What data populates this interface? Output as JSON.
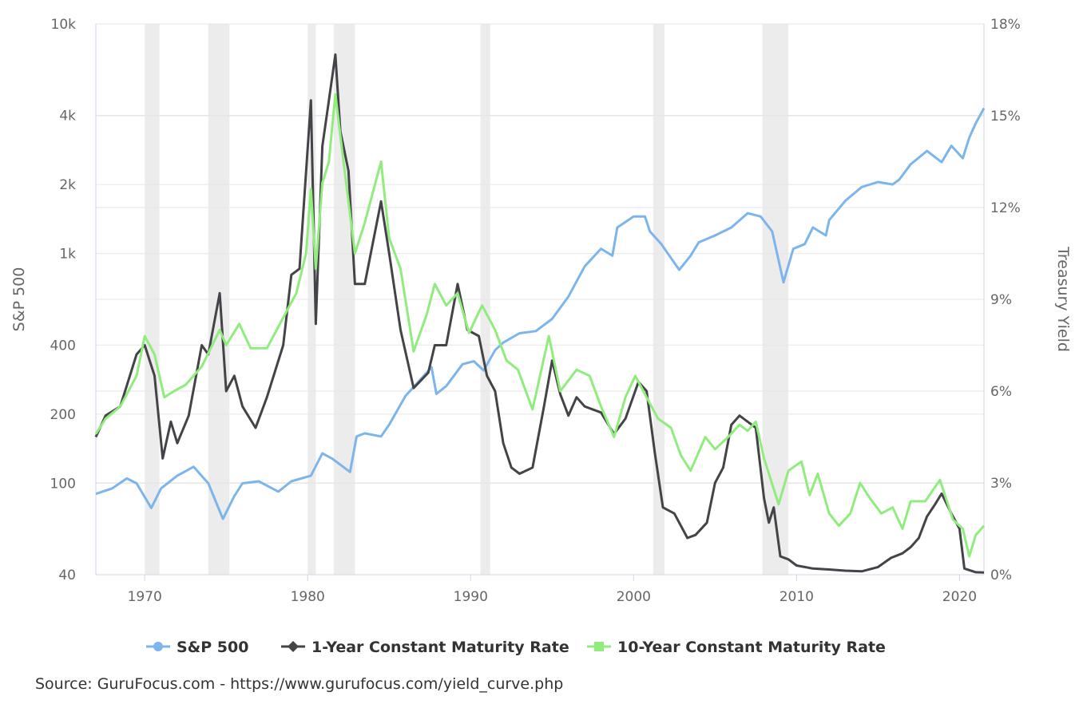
{
  "chart_data": {
    "type": "line",
    "title": "",
    "xlabel": "",
    "ylabel_left": "S&P 500",
    "ylabel_right": "Treasury Yield",
    "xlim": [
      1967.0,
      2021.5
    ],
    "ylim_left": [
      40,
      10000
    ],
    "left_scale": "log",
    "ylim_right": [
      0,
      18
    ],
    "x_ticks": [
      "1970",
      "1980",
      "1990",
      "2000",
      "2010",
      "2020"
    ],
    "left_ticks": [
      {
        "v": 10000,
        "label": "10k"
      },
      {
        "v": 4000,
        "label": "4k"
      },
      {
        "v": 2000,
        "label": "2k"
      },
      {
        "v": 1000,
        "label": "1k"
      },
      {
        "v": 400,
        "label": "400"
      },
      {
        "v": 200,
        "label": "200"
      },
      {
        "v": 100,
        "label": "100"
      },
      {
        "v": 40,
        "label": "40"
      }
    ],
    "right_ticks": [
      {
        "v": 18,
        "label": "18%"
      },
      {
        "v": 15,
        "label": "15%"
      },
      {
        "v": 12,
        "label": "12%"
      },
      {
        "v": 9,
        "label": "9%"
      },
      {
        "v": 6,
        "label": "6%"
      },
      {
        "v": 3,
        "label": "3%"
      },
      {
        "v": 0,
        "label": "0%"
      }
    ],
    "grid": true,
    "legend_position": "bottom",
    "recessions": [
      [
        1970.0,
        1970.9
      ],
      [
        1973.9,
        1975.2
      ],
      [
        1980.0,
        1980.5
      ],
      [
        1981.6,
        1982.9
      ],
      [
        1990.6,
        1991.2
      ],
      [
        2001.2,
        2001.9
      ],
      [
        2007.9,
        2009.5
      ]
    ],
    "series": [
      {
        "name": "S&P 500",
        "axis": "left",
        "color": "#7cb5ec",
        "marker": "circle",
        "x": [
          1967,
          1968,
          1968.9,
          1969.5,
          1970.4,
          1971,
          1972,
          1973,
          1973.9,
          1974.8,
          1975.5,
          1976,
          1977,
          1978.2,
          1979,
          1980.2,
          1980.9,
          1981.5,
          1982.6,
          1983,
          1983.5,
          1984.5,
          1985,
          1986,
          1987.6,
          1987.9,
          1988.5,
          1989.5,
          1990.2,
          1990.8,
          1991.5,
          1992,
          1993,
          1994,
          1995,
          1996,
          1997,
          1998,
          1998.7,
          1999,
          2000,
          2000.7,
          2001,
          2001.7,
          2002.8,
          2003.5,
          2004,
          2005,
          2006,
          2007,
          2007.8,
          2008.5,
          2009.2,
          2009.8,
          2010.5,
          2011,
          2011.8,
          2012,
          2013,
          2014,
          2015,
          2015.9,
          2016.3,
          2017,
          2018,
          2018.9,
          2019.5,
          2020.2,
          2020.6,
          2021,
          2021.5
        ],
        "y": [
          90,
          95,
          105,
          100,
          78,
          95,
          108,
          118,
          100,
          70,
          88,
          100,
          102,
          92,
          102,
          108,
          135,
          128,
          112,
          160,
          165,
          160,
          180,
          240,
          320,
          245,
          265,
          330,
          340,
          310,
          380,
          410,
          450,
          460,
          520,
          650,
          880,
          1050,
          980,
          1300,
          1450,
          1450,
          1250,
          1100,
          850,
          980,
          1120,
          1200,
          1300,
          1500,
          1450,
          1250,
          750,
          1050,
          1100,
          1300,
          1200,
          1400,
          1700,
          1950,
          2050,
          2000,
          2100,
          2450,
          2800,
          2500,
          2950,
          2600,
          3200,
          3700,
          4300
        ]
      },
      {
        "name": "1-Year Constant Maturity Rate",
        "axis": "right",
        "color": "#434348",
        "marker": "diamond",
        "x": [
          1967,
          1967.6,
          1968.5,
          1969.5,
          1970,
          1970.6,
          1971.1,
          1971.6,
          1972,
          1972.7,
          1973.5,
          1973.9,
          1974.6,
          1975,
          1975.5,
          1976,
          1976.8,
          1977.5,
          1978.5,
          1979,
          1979.5,
          1980.2,
          1980.5,
          1980.9,
          1981.3,
          1981.7,
          1982,
          1982.5,
          1982.9,
          1983.5,
          1984.5,
          1985,
          1985.7,
          1986.5,
          1987.4,
          1987.8,
          1988.5,
          1989.2,
          1989.8,
          1990.5,
          1991,
          1991.5,
          1992,
          1992.5,
          1993,
          1993.8,
          1994.5,
          1995,
          1995.5,
          1996,
          1996.5,
          1997,
          1998,
          1998.8,
          1999.5,
          2000.3,
          2000.8,
          2001.3,
          2001.8,
          2002.5,
          2003.3,
          2003.8,
          2004.5,
          2005,
          2005.5,
          2006,
          2006.5,
          2007,
          2007.5,
          2008,
          2008.3,
          2008.6,
          2009,
          2009.5,
          2010,
          2011,
          2012,
          2013,
          2014,
          2015,
          2015.8,
          2016.5,
          2017,
          2017.5,
          2018,
          2018.5,
          2018.9,
          2019.5,
          2020,
          2020.3,
          2021,
          2021.5
        ],
        "y": [
          4.5,
          5.2,
          5.5,
          7.2,
          7.5,
          6.5,
          3.8,
          5,
          4.3,
          5.2,
          7.5,
          7.2,
          9.2,
          6,
          6.5,
          5.5,
          4.8,
          5.8,
          7.5,
          9.8,
          10,
          15.5,
          8.2,
          14,
          15.5,
          17.0,
          14.5,
          13.2,
          9.5,
          9.5,
          12.2,
          10.5,
          8.0,
          6.1,
          6.6,
          7.5,
          7.5,
          9.5,
          8,
          7.8,
          6.5,
          6,
          4.3,
          3.5,
          3.3,
          3.5,
          5.5,
          7,
          5.9,
          5.2,
          5.8,
          5.5,
          5.3,
          4.6,
          5.1,
          6.3,
          6.0,
          4,
          2.2,
          2.0,
          1.2,
          1.3,
          1.7,
          3.0,
          3.5,
          4.9,
          5.2,
          5.0,
          4.8,
          2.5,
          1.7,
          2.2,
          0.6,
          0.5,
          0.3,
          0.2,
          0.17,
          0.13,
          0.11,
          0.25,
          0.55,
          0.7,
          0.9,
          1.2,
          1.9,
          2.3,
          2.65,
          2.0,
          1.5,
          0.2,
          0.08,
          0.07
        ]
      },
      {
        "name": "10-Year Constant Maturity Rate",
        "axis": "right",
        "color": "#90ed7d",
        "marker": "square",
        "x": [
          1967,
          1967.6,
          1968.5,
          1969.5,
          1970,
          1970.6,
          1971.2,
          1971.8,
          1972.5,
          1973.5,
          1974.6,
          1975,
          1975.8,
          1976.5,
          1977.5,
          1978.5,
          1979.3,
          1979.9,
          1980.2,
          1980.5,
          1980.9,
          1981.3,
          1981.7,
          1982.2,
          1982.9,
          1983.5,
          1984.5,
          1985,
          1985.7,
          1986.5,
          1987.3,
          1987.8,
          1988.5,
          1989.2,
          1989.9,
          1990.7,
          1991.5,
          1992.2,
          1992.9,
          1993.8,
          1994.8,
          1995.5,
          1996.5,
          1997.3,
          1998,
          1998.8,
          1999.5,
          2000.1,
          2000.8,
          2001.5,
          2002.3,
          2002.9,
          2003.5,
          2004.4,
          2005,
          2005.8,
          2006.5,
          2007,
          2007.5,
          2008,
          2008.9,
          2009.5,
          2010.3,
          2010.8,
          2011.3,
          2012,
          2012.6,
          2013.3,
          2013.9,
          2014.5,
          2015.2,
          2015.9,
          2016.5,
          2017,
          2017.9,
          2018.8,
          2019.6,
          2020.2,
          2020.6,
          2021,
          2021.5
        ],
        "y": [
          4.6,
          5.1,
          5.5,
          6.5,
          7.8,
          7.2,
          5.8,
          6.0,
          6.2,
          6.8,
          8.0,
          7.5,
          8.2,
          7.4,
          7.4,
          8.4,
          9.2,
          10.5,
          12.6,
          10.0,
          12.8,
          13.5,
          15.7,
          13.5,
          10.5,
          11.5,
          13.5,
          11.0,
          10.0,
          7.3,
          8.5,
          9.5,
          8.8,
          9.2,
          7.9,
          8.8,
          8.0,
          7.0,
          6.7,
          5.4,
          7.8,
          6.0,
          6.7,
          6.5,
          5.5,
          4.5,
          5.8,
          6.5,
          5.8,
          5.1,
          4.8,
          3.9,
          3.4,
          4.5,
          4.1,
          4.5,
          4.9,
          4.7,
          5.0,
          3.8,
          2.3,
          3.4,
          3.7,
          2.6,
          3.3,
          2.0,
          1.6,
          2.0,
          3.0,
          2.5,
          2.0,
          2.2,
          1.5,
          2.4,
          2.4,
          3.1,
          1.8,
          1.5,
          0.6,
          1.3,
          1.6
        ]
      }
    ]
  },
  "legend": {
    "items": [
      "S&P 500",
      "1-Year Constant Maturity Rate",
      "10-Year Constant Maturity Rate"
    ]
  },
  "source": "Source: GuruFocus.com - https://www.gurufocus.com/yield_curve.php"
}
